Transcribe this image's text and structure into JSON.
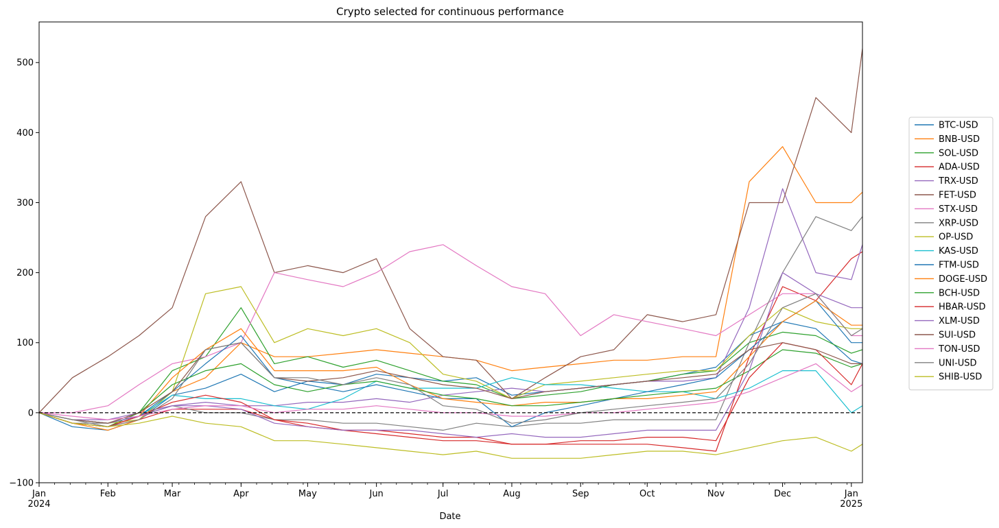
{
  "chart_data": {
    "type": "line",
    "title": "Crypto selected for continuous performance",
    "xlabel": "Date",
    "ylabel": "",
    "ylim": [
      -100,
      558
    ],
    "yticks": [
      -100,
      0,
      100,
      200,
      300,
      400,
      500
    ],
    "x_start_days": 0,
    "x_end_days": 371,
    "month_ticks": [
      {
        "label": "Jan",
        "year": "2024",
        "day": 0
      },
      {
        "label": "Feb",
        "year": "",
        "day": 31
      },
      {
        "label": "Mar",
        "year": "",
        "day": 60
      },
      {
        "label": "Apr",
        "year": "",
        "day": 91
      },
      {
        "label": "May",
        "year": "",
        "day": 121
      },
      {
        "label": "Jun",
        "year": "",
        "day": 152
      },
      {
        "label": "Jul",
        "year": "",
        "day": 182
      },
      {
        "label": "Aug",
        "year": "",
        "day": 213
      },
      {
        "label": "Sep",
        "year": "",
        "day": 244
      },
      {
        "label": "Oct",
        "year": "",
        "day": 274
      },
      {
        "label": "Nov",
        "year": "",
        "day": 305
      },
      {
        "label": "Dec",
        "year": "",
        "day": 335
      },
      {
        "label": "Jan",
        "year": "2025",
        "day": 366
      }
    ],
    "x_days": [
      0,
      15,
      31,
      45,
      60,
      75,
      91,
      106,
      121,
      137,
      152,
      167,
      182,
      197,
      213,
      228,
      244,
      259,
      274,
      290,
      305,
      320,
      335,
      350,
      366,
      371
    ],
    "reference_line": 0,
    "legend_position": "right",
    "series": [
      {
        "name": "BTC-USD",
        "color": "#1f77b4",
        "values": [
          0,
          -20,
          -25,
          -10,
          25,
          35,
          55,
          30,
          45,
          40,
          55,
          50,
          45,
          50,
          25,
          30,
          35,
          40,
          45,
          55,
          65,
          110,
          130,
          120,
          75,
          70
        ]
      },
      {
        "name": "BNB-USD",
        "color": "#ff7f0e",
        "values": [
          0,
          -15,
          -25,
          -10,
          30,
          50,
          100,
          80,
          80,
          85,
          90,
          85,
          80,
          75,
          60,
          65,
          70,
          75,
          75,
          80,
          80,
          330,
          380,
          300,
          300,
          315
        ]
      },
      {
        "name": "SOL-USD",
        "color": "#2ca02c",
        "values": [
          0,
          -15,
          -20,
          0,
          60,
          80,
          150,
          70,
          80,
          65,
          75,
          60,
          45,
          40,
          20,
          25,
          30,
          40,
          45,
          55,
          60,
          100,
          115,
          110,
          85,
          90
        ]
      },
      {
        "name": "ADA-USD",
        "color": "#d62728",
        "values": [
          0,
          -15,
          -20,
          -10,
          5,
          5,
          5,
          -10,
          -20,
          -25,
          -25,
          -30,
          -35,
          -35,
          -45,
          -45,
          -45,
          -45,
          -45,
          -50,
          -55,
          80,
          180,
          160,
          220,
          230
        ]
      },
      {
        "name": "TRX-USD",
        "color": "#9467bd",
        "values": [
          0,
          -10,
          -10,
          0,
          10,
          15,
          10,
          10,
          15,
          15,
          20,
          15,
          25,
          30,
          35,
          30,
          35,
          40,
          45,
          45,
          50,
          150,
          320,
          200,
          190,
          240
        ]
      },
      {
        "name": "FET-USD",
        "color": "#8c564b",
        "values": [
          0,
          50,
          80,
          110,
          150,
          280,
          330,
          200,
          210,
          200,
          220,
          120,
          80,
          75,
          20,
          50,
          80,
          90,
          140,
          130,
          140,
          300,
          300,
          450,
          400,
          520
        ]
      },
      {
        "name": "STX-USD",
        "color": "#e377c2",
        "values": [
          0,
          0,
          10,
          40,
          70,
          80,
          100,
          200,
          190,
          180,
          200,
          230,
          240,
          210,
          180,
          170,
          110,
          140,
          130,
          120,
          110,
          140,
          170,
          170,
          110,
          110
        ]
      },
      {
        "name": "XRP-USD",
        "color": "#7f7f7f",
        "values": [
          0,
          -15,
          -15,
          -5,
          10,
          0,
          0,
          -10,
          -10,
          -15,
          -15,
          -20,
          -25,
          -15,
          -20,
          -15,
          -15,
          -10,
          -10,
          -10,
          -10,
          100,
          200,
          280,
          260,
          280
        ]
      },
      {
        "name": "OP-USD",
        "color": "#bcbd22",
        "values": [
          0,
          -10,
          -15,
          -10,
          30,
          170,
          180,
          100,
          120,
          110,
          120,
          100,
          55,
          45,
          20,
          40,
          45,
          50,
          55,
          60,
          60,
          110,
          150,
          130,
          120,
          120
        ]
      },
      {
        "name": "KAS-USD",
        "color": "#17becf",
        "values": [
          0,
          -10,
          -15,
          -5,
          25,
          20,
          20,
          10,
          5,
          20,
          45,
          35,
          35,
          35,
          50,
          40,
          40,
          35,
          30,
          30,
          20,
          35,
          60,
          60,
          0,
          10
        ]
      },
      {
        "name": "FTM-USD",
        "color": "#1f77b4",
        "values": [
          0,
          -15,
          -20,
          -5,
          30,
          70,
          110,
          50,
          40,
          30,
          40,
          30,
          20,
          20,
          -20,
          0,
          10,
          20,
          30,
          40,
          50,
          90,
          130,
          160,
          100,
          100
        ]
      },
      {
        "name": "DOGE-USD",
        "color": "#ff7f0e",
        "values": [
          0,
          -15,
          -20,
          -5,
          50,
          90,
          120,
          60,
          60,
          60,
          65,
          40,
          20,
          15,
          10,
          15,
          15,
          20,
          20,
          25,
          30,
          80,
          130,
          160,
          125,
          125
        ]
      },
      {
        "name": "BCH-USD",
        "color": "#2ca02c",
        "values": [
          0,
          -10,
          -15,
          0,
          40,
          60,
          70,
          40,
          30,
          40,
          45,
          35,
          25,
          20,
          10,
          10,
          15,
          20,
          25,
          30,
          35,
          60,
          90,
          85,
          65,
          70
        ]
      },
      {
        "name": "HBAR-USD",
        "color": "#d62728",
        "values": [
          0,
          -15,
          -20,
          -5,
          15,
          25,
          15,
          -10,
          -15,
          -25,
          -30,
          -35,
          -40,
          -40,
          -45,
          -45,
          -40,
          -40,
          -35,
          -35,
          -40,
          50,
          100,
          90,
          40,
          70
        ]
      },
      {
        "name": "XLM-USD",
        "color": "#9467bd",
        "values": [
          0,
          -10,
          -15,
          -5,
          10,
          10,
          5,
          -15,
          -20,
          -25,
          -25,
          -25,
          -30,
          -35,
          -30,
          -35,
          -35,
          -30,
          -25,
          -25,
          -25,
          60,
          200,
          170,
          150,
          150
        ]
      },
      {
        "name": "SUI-USD",
        "color": "#8c564b",
        "values": [
          0,
          -10,
          -15,
          0,
          30,
          90,
          100,
          50,
          45,
          50,
          60,
          50,
          40,
          35,
          20,
          30,
          35,
          40,
          45,
          50,
          55,
          90,
          100,
          90,
          70,
          70
        ]
      },
      {
        "name": "TON-USD",
        "color": "#e377c2",
        "values": [
          0,
          -5,
          -10,
          -5,
          5,
          10,
          10,
          0,
          5,
          5,
          10,
          5,
          0,
          0,
          -5,
          -5,
          0,
          0,
          5,
          10,
          15,
          30,
          50,
          70,
          30,
          40
        ]
      },
      {
        "name": "UNI-USD",
        "color": "#7f7f7f",
        "values": [
          0,
          -10,
          -20,
          -10,
          20,
          90,
          100,
          50,
          50,
          40,
          50,
          40,
          10,
          5,
          -15,
          -10,
          0,
          5,
          10,
          15,
          20,
          70,
          150,
          170,
          110,
          120
        ]
      },
      {
        "name": "SHIB-USD",
        "color": "#bcbd22",
        "values": [
          0,
          -15,
          -20,
          -15,
          -5,
          -15,
          -20,
          -40,
          -40,
          -45,
          -50,
          -55,
          -60,
          -55,
          -65,
          -65,
          -65,
          -60,
          -55,
          -55,
          -60,
          -50,
          -40,
          -35,
          -55,
          -45
        ]
      }
    ]
  }
}
